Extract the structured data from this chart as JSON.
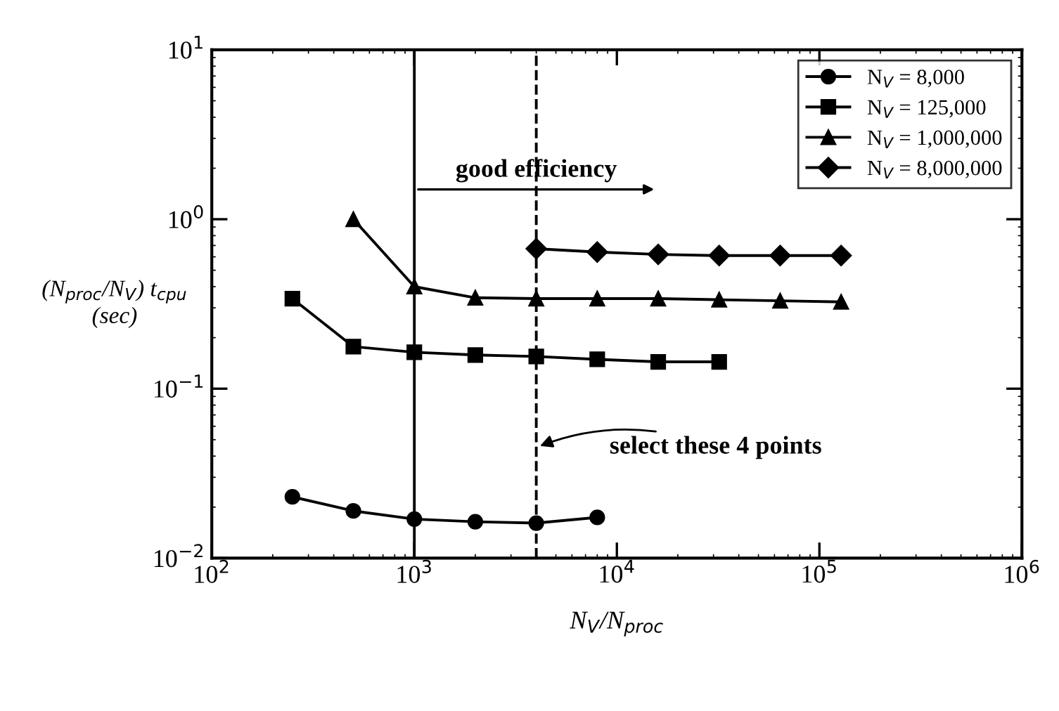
{
  "chart_data": {
    "type": "line",
    "log": "xy",
    "xlabel": "N$_{V}$/N$_{proc}$",
    "ylabel": "(N$_{proc}$/N$_{V}$) t$_{cpu}$\n(sec)",
    "xlim": [
      100,
      1000000
    ],
    "ylim": [
      0.01,
      10
    ],
    "xticks": [
      {
        "value": 100,
        "label": "10$^{2}$"
      },
      {
        "value": 1000,
        "label": "10$^{3}$"
      },
      {
        "value": 10000,
        "label": "10$^{4}$"
      },
      {
        "value": 100000,
        "label": "10$^{5}$"
      },
      {
        "value": 1000000,
        "label": "10$^{6}$"
      }
    ],
    "yticks": [
      {
        "value": 0.01,
        "label": "10$^{−2}$"
      },
      {
        "value": 0.1,
        "label": "10$^{−1}$"
      },
      {
        "value": 1,
        "label": "10$^{0}$"
      },
      {
        "value": 10,
        "label": "10$^{1}$"
      }
    ],
    "legend": "top right",
    "grid": false,
    "series": [
      {
        "name": "N$_{V}$ = 8,000",
        "color": "#000000",
        "marker": "circle",
        "x": [
          250,
          500,
          1000,
          2000,
          4000,
          8000
        ],
        "values": [
          0.023,
          0.019,
          0.017,
          0.0164,
          0.0161,
          0.0174
        ]
      },
      {
        "name": "N$_{V}$ = 125,000",
        "color": "#000000",
        "marker": "square",
        "x": [
          250,
          500,
          1000,
          2000,
          4000,
          8000,
          16000,
          32000
        ],
        "values": [
          0.34,
          0.177,
          0.164,
          0.158,
          0.155,
          0.149,
          0.144,
          0.144
        ]
      },
      {
        "name": "N$_{V}$ = 1,000,000",
        "color": "#000000",
        "marker": "triangle",
        "x": [
          500,
          1000,
          2000,
          4000,
          8000,
          16000,
          32000,
          64000,
          128000
        ],
        "values": [
          1.0,
          0.4,
          0.344,
          0.34,
          0.34,
          0.34,
          0.335,
          0.33,
          0.325
        ]
      },
      {
        "name": "N$_{V}$ = 8,000,000",
        "color": "#000000",
        "marker": "diamond",
        "x": [
          4000,
          8000,
          16000,
          32000,
          64000,
          128000
        ],
        "values": [
          0.67,
          0.64,
          0.62,
          0.61,
          0.61,
          0.61
        ]
      }
    ],
    "ref_lines": [
      {
        "axis": "x",
        "value": 1000,
        "color": "#000000",
        "line_style": "solid"
      },
      {
        "axis": "x",
        "value": 4000,
        "color": "#000000",
        "line_style": "dashed"
      }
    ],
    "annotations": [
      {
        "text": "good efficiency",
        "x": 1000,
        "y": 1.5
      },
      {
        "text": "select these 4 points",
        "x": 4000,
        "y": 0.045
      }
    ]
  }
}
